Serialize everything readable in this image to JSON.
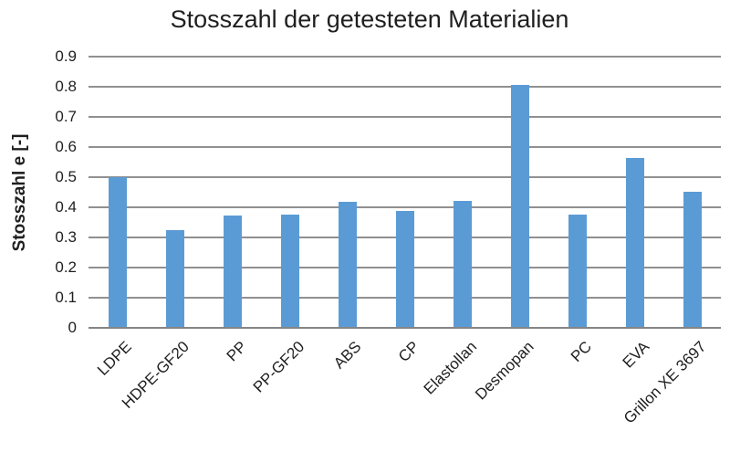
{
  "chart_data": {
    "type": "bar",
    "title": "Stosszahl der getesteten Materialien",
    "xlabel": "",
    "ylabel": "Stosszahl e [-]",
    "categories": [
      "LDPE",
      "HDPE-GF20",
      "PP",
      "PP-GF20",
      "ABS",
      "CP",
      "Elastollan",
      "Desmopan",
      "PC",
      "EVA",
      "Grillon XE 3697"
    ],
    "values": [
      0.5,
      0.325,
      0.372,
      0.377,
      0.418,
      0.388,
      0.421,
      0.807,
      0.376,
      0.564,
      0.451
    ],
    "ylim": [
      0,
      0.9
    ],
    "ytick_step": 0.1,
    "ytick_labels": [
      "0.9",
      "0.8",
      "0.7",
      "0.6",
      "0.5",
      "0.4",
      "0.3",
      "0.2",
      "0.1",
      "0"
    ],
    "grid": true,
    "legend": false,
    "colors": {
      "bar": "#5B9BD5",
      "gridline": "#909090",
      "axis_line": "#858585",
      "text": "#1f1f1f"
    }
  }
}
